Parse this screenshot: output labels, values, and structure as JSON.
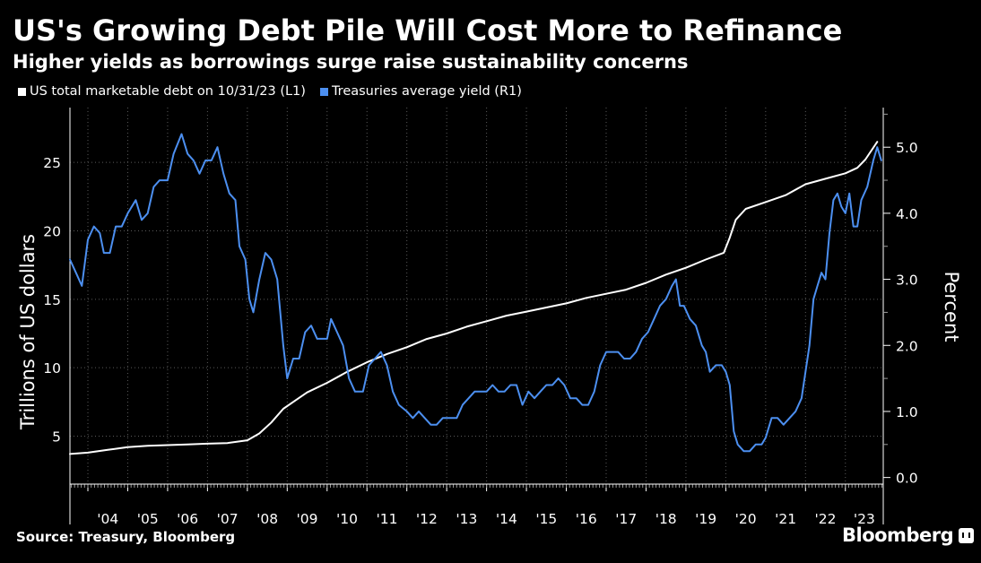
{
  "title": "US's Growing Debt Pile Will Cost More to Refinance",
  "subtitle": "Higher yields as borrowings surge raise sustainability concerns",
  "legend": [
    {
      "label": "US total marketable debt on 10/31/23 (L1)",
      "color": "#ffffff"
    },
    {
      "label": "Treasuries average yield (R1)",
      "color": "#4c8ff0"
    }
  ],
  "source": "Source: Treasury, Bloomberg",
  "brand": "Bloomberg",
  "brand_icon": "bloomberg-chat-icon",
  "chart_data": {
    "type": "line",
    "x_range": [
      2003.55,
      2023.95
    ],
    "x_ticks": [
      {
        "label": "'04",
        "value": 2004
      },
      {
        "label": "'05",
        "value": 2005
      },
      {
        "label": "'06",
        "value": 2006
      },
      {
        "label": "'07",
        "value": 2007
      },
      {
        "label": "'08",
        "value": 2008
      },
      {
        "label": "'09",
        "value": 2009
      },
      {
        "label": "'10",
        "value": 2010
      },
      {
        "label": "'11",
        "value": 2011
      },
      {
        "label": "'12",
        "value": 2012
      },
      {
        "label": "'13",
        "value": 2013
      },
      {
        "label": "'14",
        "value": 2014
      },
      {
        "label": "'15",
        "value": 2015
      },
      {
        "label": "'16",
        "value": 2016
      },
      {
        "label": "'17",
        "value": 2017
      },
      {
        "label": "'18",
        "value": 2018
      },
      {
        "label": "'19",
        "value": 2019
      },
      {
        "label": "'20",
        "value": 2020
      },
      {
        "label": "'21",
        "value": 2021
      },
      {
        "label": "'22",
        "value": 2022
      },
      {
        "label": "'23",
        "value": 2023
      }
    ],
    "y_left": {
      "label": "Trillions of US dollars",
      "ylim": [
        1.5,
        29
      ],
      "ticks": [
        5,
        10,
        15,
        20,
        25
      ]
    },
    "y_right": {
      "label": "Percent",
      "ylim": [
        -0.1,
        5.6
      ],
      "ticks": [
        0.0,
        1.0,
        2.0,
        3.0,
        4.0,
        5.0
      ],
      "tick_labels": [
        "0.0",
        "1.0",
        "2.0",
        "3.0",
        "4.0",
        "5.0"
      ]
    },
    "grid": true,
    "legend_position": "top-left",
    "series": [
      {
        "name": "US total marketable debt on 10/31/23 (L1)",
        "axis": "left",
        "color": "#ffffff",
        "points": [
          [
            2003.55,
            3.7
          ],
          [
            2004.0,
            3.8
          ],
          [
            2004.5,
            4.0
          ],
          [
            2005.0,
            4.2
          ],
          [
            2005.5,
            4.3
          ],
          [
            2006.0,
            4.35
          ],
          [
            2006.5,
            4.4
          ],
          [
            2007.0,
            4.45
          ],
          [
            2007.5,
            4.5
          ],
          [
            2008.0,
            4.7
          ],
          [
            2008.3,
            5.2
          ],
          [
            2008.6,
            6.0
          ],
          [
            2008.9,
            7.0
          ],
          [
            2009.2,
            7.6
          ],
          [
            2009.5,
            8.2
          ],
          [
            2010.0,
            8.9
          ],
          [
            2010.5,
            9.7
          ],
          [
            2011.0,
            10.4
          ],
          [
            2011.5,
            11.0
          ],
          [
            2012.0,
            11.5
          ],
          [
            2012.5,
            12.1
          ],
          [
            2013.0,
            12.5
          ],
          [
            2013.5,
            13.0
          ],
          [
            2014.0,
            13.4
          ],
          [
            2014.5,
            13.8
          ],
          [
            2015.0,
            14.1
          ],
          [
            2015.5,
            14.4
          ],
          [
            2016.0,
            14.7
          ],
          [
            2016.5,
            15.1
          ],
          [
            2017.0,
            15.4
          ],
          [
            2017.5,
            15.7
          ],
          [
            2018.0,
            16.2
          ],
          [
            2018.5,
            16.8
          ],
          [
            2019.0,
            17.3
          ],
          [
            2019.5,
            17.9
          ],
          [
            2019.95,
            18.4
          ],
          [
            2020.1,
            19.5
          ],
          [
            2020.25,
            20.8
          ],
          [
            2020.5,
            21.6
          ],
          [
            2021.0,
            22.1
          ],
          [
            2021.5,
            22.6
          ],
          [
            2022.0,
            23.4
          ],
          [
            2022.5,
            23.8
          ],
          [
            2023.0,
            24.2
          ],
          [
            2023.3,
            24.6
          ],
          [
            2023.5,
            25.2
          ],
          [
            2023.8,
            26.5
          ]
        ]
      },
      {
        "name": "Treasuries average yield (R1)",
        "axis": "right",
        "color": "#4c8ff0",
        "points": [
          [
            2003.55,
            3.3
          ],
          [
            2003.7,
            3.1
          ],
          [
            2003.85,
            2.9
          ],
          [
            2004.0,
            3.6
          ],
          [
            2004.15,
            3.8
          ],
          [
            2004.3,
            3.7
          ],
          [
            2004.4,
            3.4
          ],
          [
            2004.55,
            3.4
          ],
          [
            2004.7,
            3.8
          ],
          [
            2004.85,
            3.8
          ],
          [
            2005.0,
            4.0
          ],
          [
            2005.2,
            4.2
          ],
          [
            2005.35,
            3.9
          ],
          [
            2005.5,
            4.0
          ],
          [
            2005.65,
            4.4
          ],
          [
            2005.8,
            4.5
          ],
          [
            2006.0,
            4.5
          ],
          [
            2006.15,
            4.9
          ],
          [
            2006.35,
            5.2
          ],
          [
            2006.5,
            4.9
          ],
          [
            2006.65,
            4.8
          ],
          [
            2006.8,
            4.6
          ],
          [
            2006.95,
            4.8
          ],
          [
            2007.1,
            4.8
          ],
          [
            2007.25,
            5.0
          ],
          [
            2007.4,
            4.6
          ],
          [
            2007.55,
            4.3
          ],
          [
            2007.7,
            4.2
          ],
          [
            2007.8,
            3.5
          ],
          [
            2007.95,
            3.3
          ],
          [
            2008.05,
            2.7
          ],
          [
            2008.15,
            2.5
          ],
          [
            2008.3,
            3.0
          ],
          [
            2008.45,
            3.4
          ],
          [
            2008.6,
            3.3
          ],
          [
            2008.75,
            3.0
          ],
          [
            2008.9,
            2.0
          ],
          [
            2009.0,
            1.5
          ],
          [
            2009.15,
            1.8
          ],
          [
            2009.3,
            1.8
          ],
          [
            2009.45,
            2.2
          ],
          [
            2009.6,
            2.3
          ],
          [
            2009.75,
            2.1
          ],
          [
            2009.9,
            2.1
          ],
          [
            2010.0,
            2.1
          ],
          [
            2010.1,
            2.4
          ],
          [
            2010.25,
            2.2
          ],
          [
            2010.4,
            2.0
          ],
          [
            2010.55,
            1.5
          ],
          [
            2010.7,
            1.3
          ],
          [
            2010.9,
            1.3
          ],
          [
            2011.05,
            1.7
          ],
          [
            2011.2,
            1.8
          ],
          [
            2011.35,
            1.9
          ],
          [
            2011.5,
            1.7
          ],
          [
            2011.65,
            1.3
          ],
          [
            2011.8,
            1.1
          ],
          [
            2012.0,
            1.0
          ],
          [
            2012.15,
            0.9
          ],
          [
            2012.3,
            1.0
          ],
          [
            2012.45,
            0.9
          ],
          [
            2012.6,
            0.8
          ],
          [
            2012.75,
            0.8
          ],
          [
            2012.9,
            0.9
          ],
          [
            2013.1,
            0.9
          ],
          [
            2013.25,
            0.9
          ],
          [
            2013.4,
            1.1
          ],
          [
            2013.55,
            1.2
          ],
          [
            2013.7,
            1.3
          ],
          [
            2013.85,
            1.3
          ],
          [
            2014.0,
            1.3
          ],
          [
            2014.15,
            1.4
          ],
          [
            2014.3,
            1.3
          ],
          [
            2014.45,
            1.3
          ],
          [
            2014.6,
            1.4
          ],
          [
            2014.75,
            1.4
          ],
          [
            2014.9,
            1.1
          ],
          [
            2015.05,
            1.3
          ],
          [
            2015.2,
            1.2
          ],
          [
            2015.35,
            1.3
          ],
          [
            2015.5,
            1.4
          ],
          [
            2015.65,
            1.4
          ],
          [
            2015.8,
            1.5
          ],
          [
            2015.95,
            1.4
          ],
          [
            2016.1,
            1.2
          ],
          [
            2016.25,
            1.2
          ],
          [
            2016.4,
            1.1
          ],
          [
            2016.55,
            1.1
          ],
          [
            2016.7,
            1.3
          ],
          [
            2016.85,
            1.7
          ],
          [
            2017.0,
            1.9
          ],
          [
            2017.15,
            1.9
          ],
          [
            2017.3,
            1.9
          ],
          [
            2017.45,
            1.8
          ],
          [
            2017.6,
            1.8
          ],
          [
            2017.75,
            1.9
          ],
          [
            2017.9,
            2.1
          ],
          [
            2018.05,
            2.2
          ],
          [
            2018.2,
            2.4
          ],
          [
            2018.35,
            2.6
          ],
          [
            2018.5,
            2.7
          ],
          [
            2018.65,
            2.9
          ],
          [
            2018.75,
            3.0
          ],
          [
            2018.85,
            2.6
          ],
          [
            2018.95,
            2.6
          ],
          [
            2019.1,
            2.4
          ],
          [
            2019.25,
            2.3
          ],
          [
            2019.4,
            2.0
          ],
          [
            2019.5,
            1.9
          ],
          [
            2019.6,
            1.6
          ],
          [
            2019.75,
            1.7
          ],
          [
            2019.9,
            1.7
          ],
          [
            2020.0,
            1.6
          ],
          [
            2020.1,
            1.4
          ],
          [
            2020.2,
            0.7
          ],
          [
            2020.3,
            0.5
          ],
          [
            2020.45,
            0.4
          ],
          [
            2020.6,
            0.4
          ],
          [
            2020.75,
            0.5
          ],
          [
            2020.9,
            0.5
          ],
          [
            2021.0,
            0.6
          ],
          [
            2021.15,
            0.9
          ],
          [
            2021.3,
            0.9
          ],
          [
            2021.45,
            0.8
          ],
          [
            2021.6,
            0.9
          ],
          [
            2021.75,
            1.0
          ],
          [
            2021.9,
            1.2
          ],
          [
            2022.0,
            1.6
          ],
          [
            2022.1,
            2.0
          ],
          [
            2022.2,
            2.7
          ],
          [
            2022.3,
            2.9
          ],
          [
            2022.4,
            3.1
          ],
          [
            2022.5,
            3.0
          ],
          [
            2022.6,
            3.7
          ],
          [
            2022.7,
            4.2
          ],
          [
            2022.8,
            4.3
          ],
          [
            2022.9,
            4.1
          ],
          [
            2023.0,
            4.0
          ],
          [
            2023.1,
            4.3
          ],
          [
            2023.2,
            3.8
          ],
          [
            2023.3,
            3.8
          ],
          [
            2023.4,
            4.2
          ],
          [
            2023.55,
            4.4
          ],
          [
            2023.7,
            4.8
          ],
          [
            2023.8,
            5.0
          ],
          [
            2023.9,
            4.8
          ]
        ]
      }
    ]
  }
}
